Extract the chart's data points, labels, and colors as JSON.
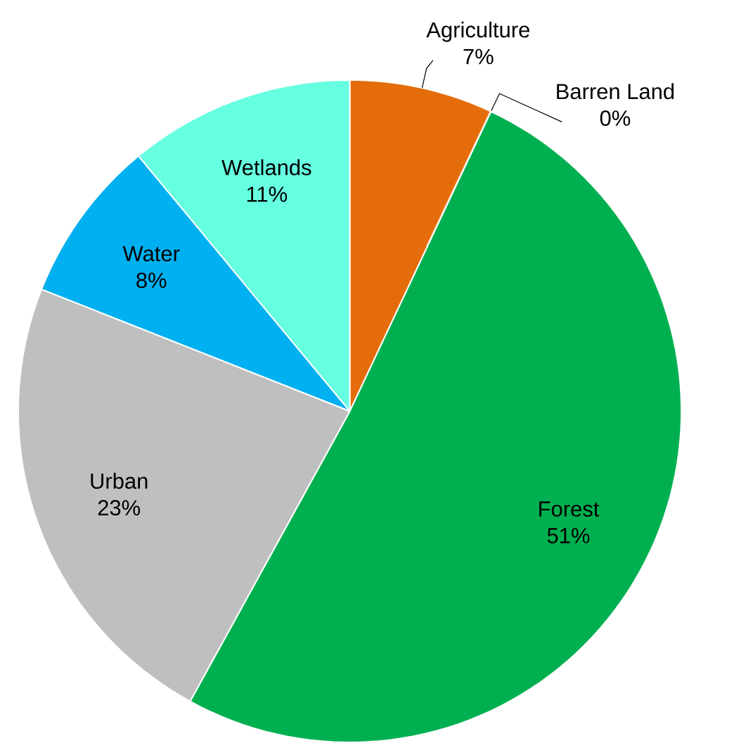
{
  "chart_data": {
    "type": "pie",
    "categories": [
      "Agriculture",
      "Barren Land",
      "Forest",
      "Urban",
      "Water",
      "Wetlands"
    ],
    "values": [
      7,
      0,
      51,
      23,
      8,
      11
    ],
    "colors": [
      "#e46c0a",
      "#fac090",
      "#00b050",
      "#bfbfbf",
      "#00b0f0",
      "#66ffe0"
    ],
    "value_labels": [
      "7%",
      "0%",
      "51%",
      "23%",
      "8%",
      "11%"
    ]
  }
}
